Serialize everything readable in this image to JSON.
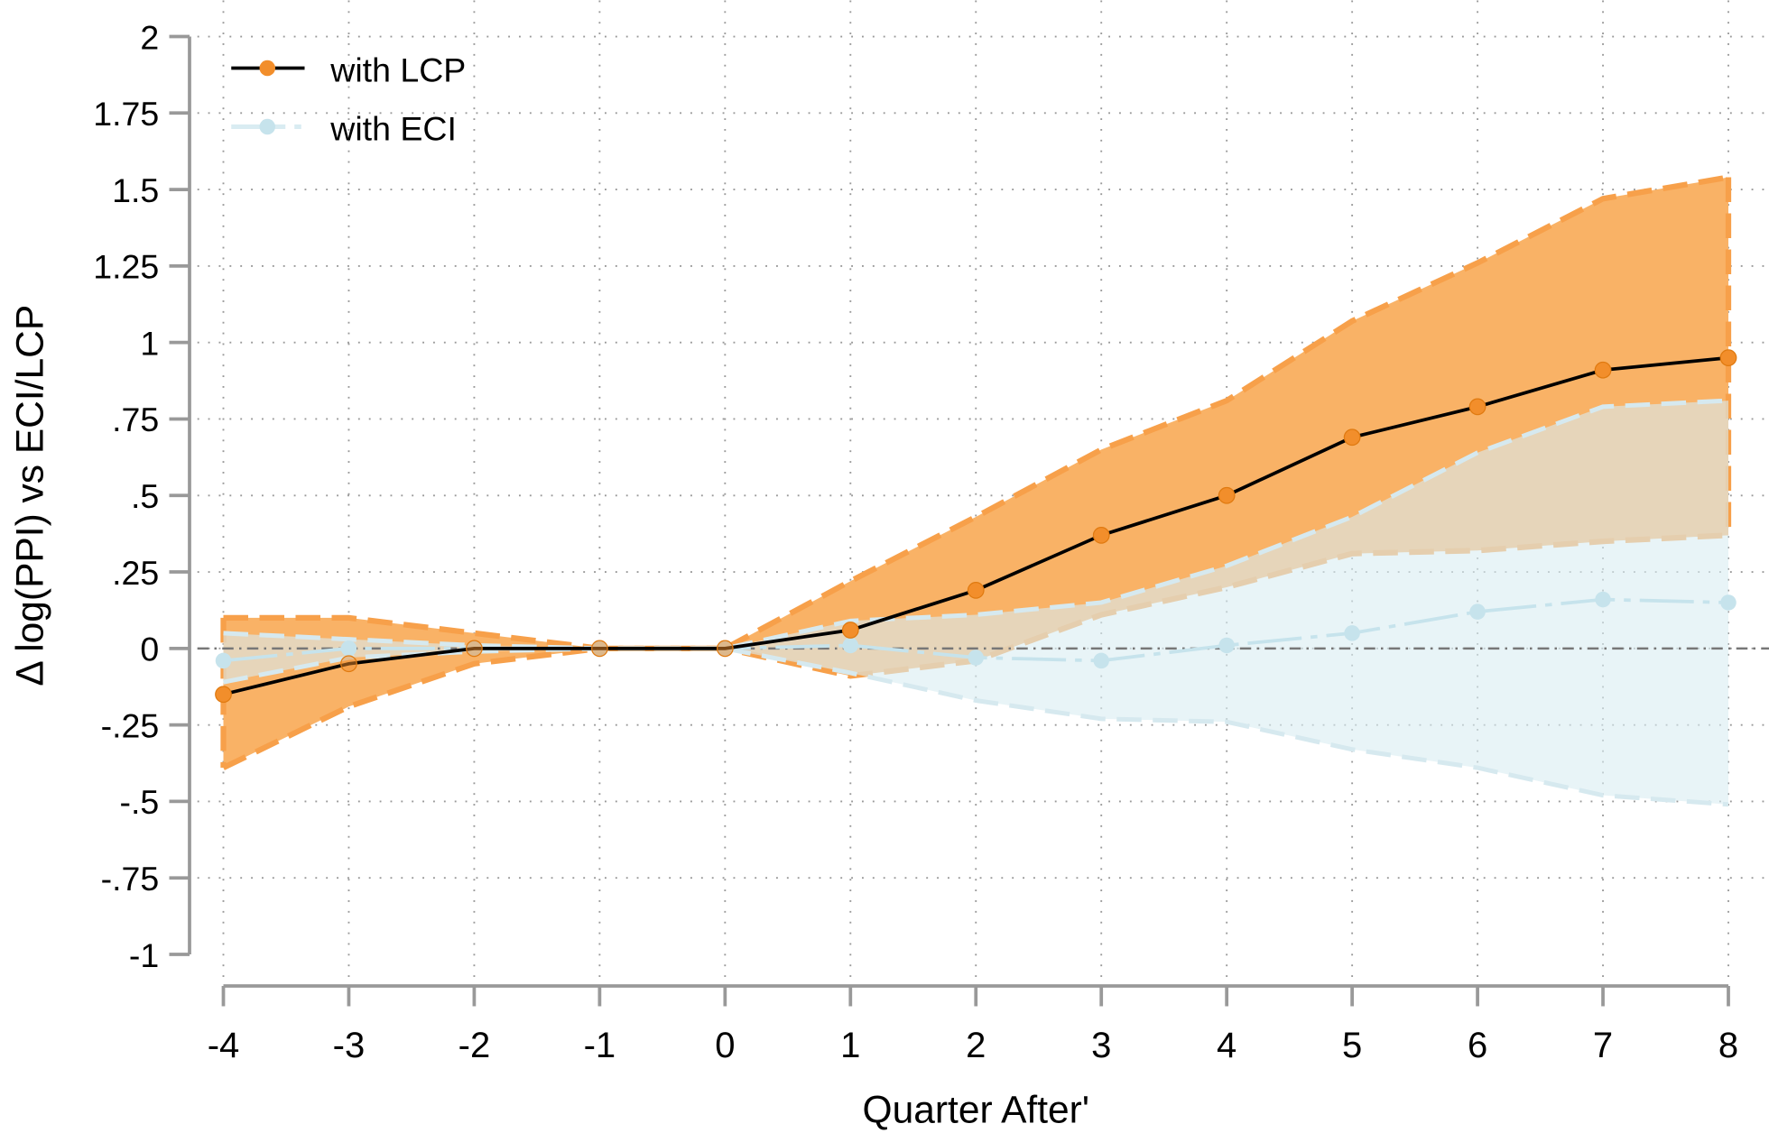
{
  "chart_data": {
    "type": "line",
    "title": "",
    "xlabel": "Quarter After'",
    "ylabel": "Δ log(PPI) vs ECI/LCP",
    "x": [
      -4,
      -3,
      -2,
      -1,
      0,
      1,
      2,
      3,
      4,
      5,
      6,
      7,
      8
    ],
    "xlim": [
      -4,
      8
    ],
    "ylim": [
      -1,
      2
    ],
    "x_ticks": [
      "-4",
      "-3",
      "-2",
      "-1",
      "0",
      "1",
      "2",
      "3",
      "4",
      "5",
      "6",
      "7",
      "8"
    ],
    "y_ticks": [
      {
        "value": 2,
        "label": "2"
      },
      {
        "value": 1.75,
        "label": "1.75"
      },
      {
        "value": 1.5,
        "label": "1.5"
      },
      {
        "value": 1.25,
        "label": "1.25"
      },
      {
        "value": 1,
        "label": "1"
      },
      {
        "value": 0.75,
        "label": ".75"
      },
      {
        "value": 0.5,
        "label": ".5"
      },
      {
        "value": 0.25,
        "label": ".25"
      },
      {
        "value": 0,
        "label": "0"
      },
      {
        "value": -0.25,
        "label": "-.25"
      },
      {
        "value": -0.5,
        "label": "-.5"
      },
      {
        "value": -0.75,
        "label": "-.75"
      },
      {
        "value": -1,
        "label": "-1"
      }
    ],
    "grid": true,
    "reference_line_y": 0,
    "legend_position": "top-left",
    "series": [
      {
        "name": "with LCP",
        "color": "#f28e2b",
        "line_color": "#000000",
        "band_color": "#f9b266",
        "values": [
          -0.15,
          -0.05,
          0,
          0,
          0,
          0.06,
          0.19,
          0.37,
          0.5,
          0.69,
          0.79,
          0.91,
          0.95
        ],
        "upper": [
          0.1,
          0.1,
          0.05,
          0,
          0,
          0.22,
          0.43,
          0.65,
          0.81,
          1.07,
          1.26,
          1.47,
          1.54
        ],
        "lower": [
          -0.39,
          -0.19,
          -0.05,
          0,
          0,
          -0.09,
          -0.04,
          0.11,
          0.2,
          0.31,
          0.32,
          0.35,
          0.37
        ]
      },
      {
        "name": "with ECI",
        "color": "#add8e6",
        "line_color": "#c6e3ec",
        "band_color": "#d9ecf2",
        "values": [
          -0.04,
          0,
          0,
          0,
          0,
          0.01,
          -0.03,
          -0.04,
          0.01,
          0.05,
          0.12,
          0.16,
          0.15
        ],
        "upper": [
          0.05,
          0.03,
          0.01,
          0,
          0,
          0.09,
          0.11,
          0.15,
          0.27,
          0.43,
          0.64,
          0.79,
          0.81
        ],
        "lower": [
          -0.11,
          -0.03,
          -0.01,
          0,
          0,
          -0.08,
          -0.17,
          -0.23,
          -0.24,
          -0.33,
          -0.39,
          -0.48,
          -0.51
        ]
      }
    ]
  }
}
